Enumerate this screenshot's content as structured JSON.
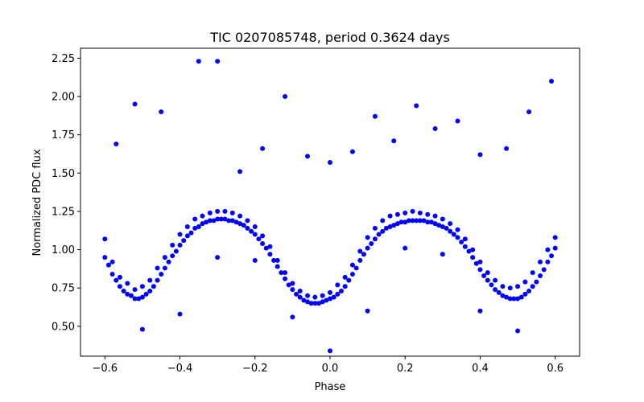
{
  "chart_data": {
    "type": "scatter",
    "title": "TIC 0207085748, period 0.3624 days",
    "xlabel": "Phase",
    "ylabel": "Normalized PDC flux",
    "xlim": [
      -0.665,
      0.665
    ],
    "ylim": [
      0.305,
      2.315
    ],
    "x_ticks": [
      -0.6,
      -0.4,
      -0.2,
      0.0,
      0.2,
      0.4,
      0.6
    ],
    "x_tick_labels": [
      "−0.6",
      "−0.4",
      "−0.2",
      "0.0",
      "0.2",
      "0.4",
      "0.6"
    ],
    "y_ticks": [
      0.5,
      0.75,
      1.0,
      1.25,
      1.5,
      1.75,
      2.0,
      2.25
    ],
    "y_tick_labels": [
      "0.50",
      "0.75",
      "1.00",
      "1.25",
      "1.50",
      "1.75",
      "2.00",
      "2.25"
    ],
    "grid": false,
    "marker_color": "#0000ff",
    "series": [
      {
        "x": [
          -0.6,
          -0.58,
          -0.56,
          -0.54,
          -0.52,
          -0.5,
          -0.48,
          -0.46,
          -0.44,
          -0.42,
          -0.4,
          -0.38,
          -0.36,
          -0.34,
          -0.32,
          -0.3,
          -0.28,
          -0.26,
          -0.24,
          -0.22,
          -0.2,
          -0.18,
          -0.16,
          -0.14,
          -0.12,
          -0.1,
          -0.08,
          -0.06,
          -0.04,
          -0.02,
          0.0,
          0.02,
          0.04,
          0.06,
          0.08,
          0.1,
          0.12,
          0.14,
          0.16,
          0.18,
          0.2,
          0.22,
          0.24,
          0.26,
          0.28,
          0.3,
          0.32,
          0.34,
          0.36,
          0.38,
          0.4,
          0.42,
          0.44,
          0.46,
          0.48,
          0.5,
          0.52,
          0.54,
          0.56,
          0.58,
          0.6,
          -0.59,
          -0.57,
          -0.55,
          -0.53,
          -0.51,
          -0.49,
          -0.47,
          -0.45,
          -0.43,
          -0.41,
          -0.39,
          -0.37,
          -0.35,
          -0.33,
          -0.31,
          -0.29,
          -0.27,
          -0.25,
          -0.23,
          -0.21,
          -0.19,
          -0.17,
          -0.15,
          -0.13,
          -0.11,
          -0.09,
          -0.07,
          -0.05,
          -0.03,
          -0.01,
          0.01,
          0.03,
          0.05,
          0.07,
          0.09,
          0.11,
          0.13,
          0.15,
          0.17,
          0.19,
          0.21,
          0.23,
          0.25,
          0.27,
          0.29,
          0.31,
          0.33,
          0.35,
          0.37,
          0.39,
          0.41,
          0.43,
          0.45,
          0.47,
          0.49,
          0.51,
          0.53,
          0.55,
          0.57,
          0.59,
          -0.6,
          -0.58,
          -0.56,
          -0.54,
          -0.52,
          -0.5,
          -0.48,
          -0.46,
          -0.44,
          -0.42,
          -0.4,
          -0.38,
          -0.36,
          -0.34,
          -0.32,
          -0.3,
          -0.28,
          -0.26,
          -0.24,
          -0.22,
          -0.2,
          -0.18,
          -0.16,
          -0.14,
          -0.12,
          -0.1,
          -0.08,
          -0.06,
          -0.04,
          -0.02,
          0.0,
          0.02,
          0.04,
          0.06,
          0.08,
          0.1,
          0.12,
          0.14,
          0.16,
          0.18,
          0.2,
          0.22,
          0.24,
          0.26,
          0.28,
          0.3,
          0.32,
          0.34,
          0.36,
          0.38,
          0.4,
          0.42,
          0.44,
          0.46,
          0.48,
          0.5,
          0.52,
          0.54,
          0.56,
          0.58,
          0.6,
          -0.57,
          -0.52,
          -0.45,
          -0.35,
          -0.3,
          -0.24,
          -0.18,
          -0.12,
          -0.06,
          0.0,
          0.06,
          0.12,
          0.17,
          0.23,
          0.28,
          0.34,
          0.4,
          0.47,
          0.53,
          0.59,
          -0.5,
          -0.4,
          -0.3,
          -0.2,
          -0.1,
          0.0,
          0.1,
          0.2,
          0.3,
          0.4,
          0.5
        ],
        "y": [
          0.95,
          0.84,
          0.76,
          0.71,
          0.68,
          0.69,
          0.73,
          0.8,
          0.88,
          0.96,
          1.03,
          1.09,
          1.14,
          1.17,
          1.19,
          1.2,
          1.2,
          1.19,
          1.17,
          1.14,
          1.1,
          1.04,
          0.97,
          0.89,
          0.81,
          0.74,
          0.69,
          0.66,
          0.65,
          0.66,
          0.68,
          0.71,
          0.76,
          0.84,
          0.93,
          1.01,
          1.07,
          1.12,
          1.15,
          1.17,
          1.18,
          1.19,
          1.19,
          1.18,
          1.17,
          1.15,
          1.12,
          1.08,
          1.02,
          0.95,
          0.87,
          0.8,
          0.74,
          0.7,
          0.68,
          0.68,
          0.71,
          0.76,
          0.83,
          0.92,
          1.01,
          0.9,
          0.8,
          0.73,
          0.7,
          0.68,
          0.71,
          0.76,
          0.84,
          0.92,
          0.99,
          1.06,
          1.11,
          1.15,
          1.18,
          1.19,
          1.2,
          1.19,
          1.18,
          1.16,
          1.12,
          1.07,
          1.01,
          0.93,
          0.85,
          0.77,
          0.71,
          0.67,
          0.65,
          0.65,
          0.67,
          0.69,
          0.73,
          0.8,
          0.88,
          0.97,
          1.04,
          1.1,
          1.14,
          1.16,
          1.18,
          1.19,
          1.19,
          1.19,
          1.18,
          1.16,
          1.14,
          1.1,
          1.05,
          0.99,
          0.91,
          0.83,
          0.77,
          0.72,
          0.69,
          0.68,
          0.69,
          0.73,
          0.79,
          0.87,
          0.96,
          1.07,
          0.92,
          0.82,
          0.78,
          0.74,
          0.76,
          0.8,
          0.88,
          0.95,
          1.03,
          1.1,
          1.15,
          1.2,
          1.22,
          1.24,
          1.25,
          1.25,
          1.24,
          1.22,
          1.19,
          1.15,
          1.09,
          1.02,
          0.93,
          0.85,
          0.78,
          0.73,
          0.7,
          0.69,
          0.7,
          0.72,
          0.77,
          0.82,
          0.9,
          0.99,
          1.08,
          1.14,
          1.19,
          1.22,
          1.23,
          1.24,
          1.25,
          1.24,
          1.23,
          1.22,
          1.2,
          1.17,
          1.13,
          1.07,
          1.0,
          0.92,
          0.85,
          0.8,
          0.76,
          0.75,
          0.76,
          0.79,
          0.85,
          0.92,
          1.0,
          1.08,
          1.69,
          1.95,
          1.9,
          2.23,
          2.23,
          1.51,
          1.66,
          2.0,
          1.61,
          1.57,
          1.64,
          1.87,
          1.71,
          1.94,
          1.79,
          1.84,
          1.62,
          1.66,
          1.9,
          2.1,
          0.48,
          0.58,
          0.95,
          0.93,
          0.56,
          0.34,
          0.6,
          1.01,
          0.97,
          0.6,
          0.47
        ]
      }
    ]
  }
}
